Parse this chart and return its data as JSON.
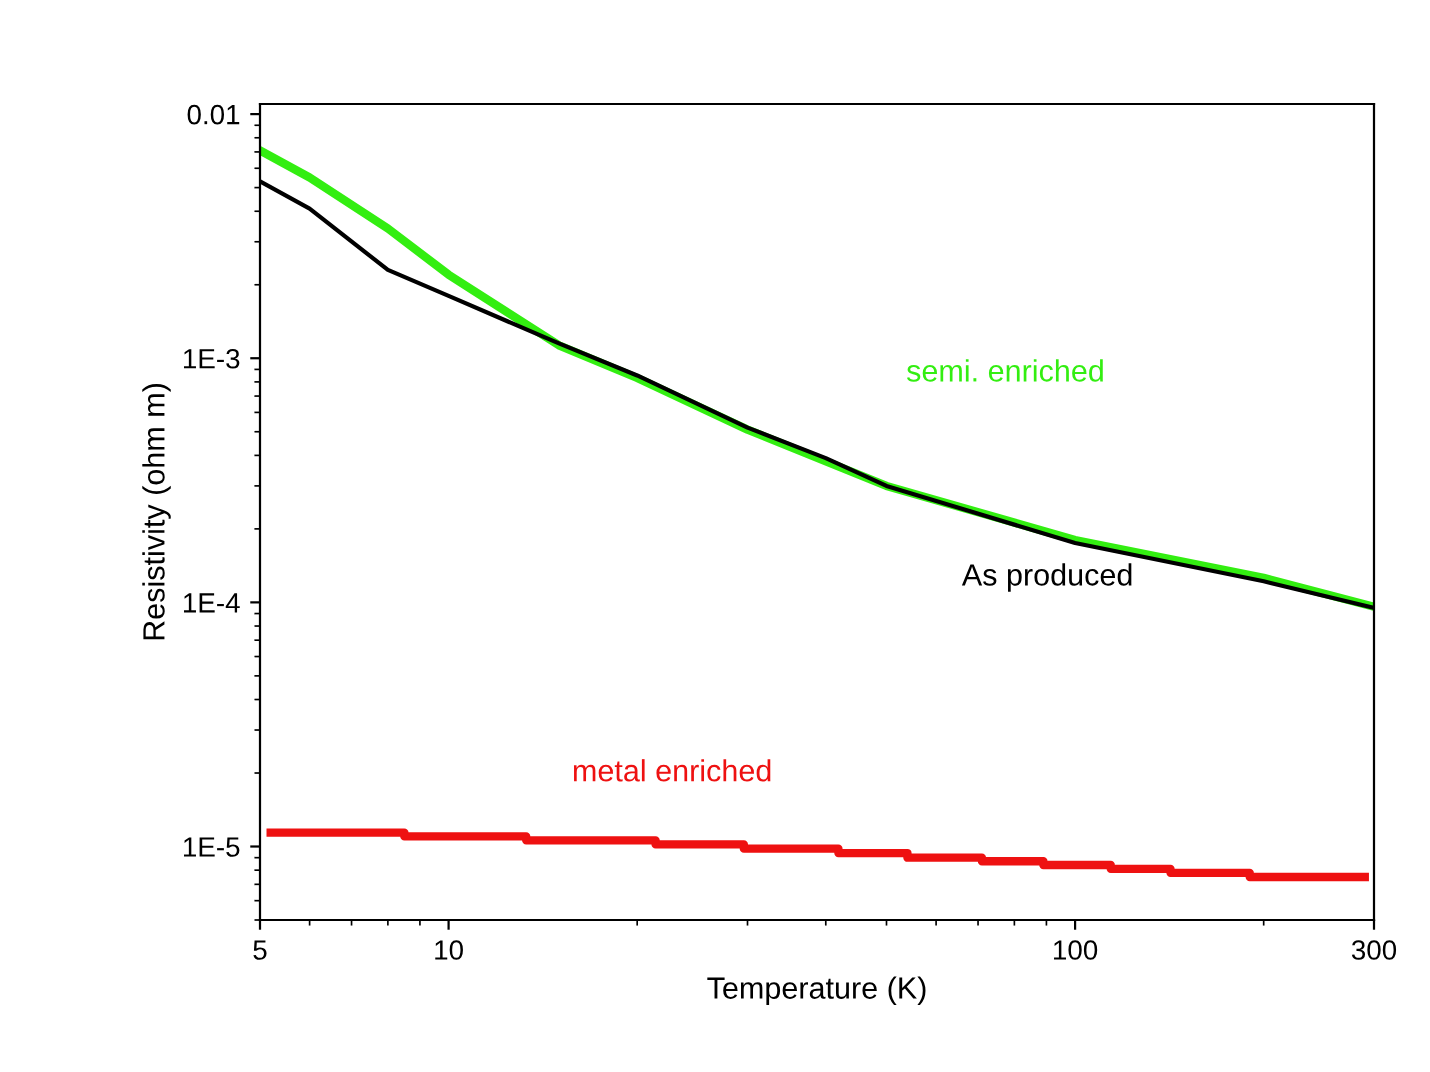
{
  "chart_data": {
    "type": "line",
    "xlabel": "Temperature (K)",
    "ylabel": "Resistivity (ohm m)",
    "log": "xy",
    "xlim": [
      5,
      300
    ],
    "xticks": [
      5,
      10,
      100,
      300
    ],
    "ylim": [
      5e-06,
      0.011
    ],
    "yticks": [
      {
        "value": 0.01,
        "label": "0.01"
      },
      {
        "value": 0.001,
        "label": "1E-3"
      },
      {
        "value": 0.0001,
        "label": "1E-4"
      },
      {
        "value": 1e-05,
        "label": "1E-5"
      }
    ],
    "grid": false,
    "legend": false,
    "marker": "none",
    "line_style": "solid",
    "series": [
      {
        "name": "semi. enriched",
        "color": "#33ee11",
        "x": [
          5,
          6,
          8,
          10,
          15,
          20,
          30,
          50,
          100,
          200,
          300
        ],
        "values": [
          0.0071,
          0.0055,
          0.0034,
          0.0022,
          0.00113,
          0.00083,
          0.00051,
          0.0003,
          0.00018,
          0.000126,
          9.6e-05
        ]
      },
      {
        "name": "As produced",
        "color": "#000000",
        "x": [
          5,
          6,
          8,
          10,
          15,
          20,
          30,
          40,
          50,
          100,
          200,
          300
        ],
        "values": [
          0.0053,
          0.0041,
          0.0023,
          0.0018,
          0.00115,
          0.00085,
          0.00052,
          0.00039,
          0.0003,
          0.000175,
          0.000122,
          9.5e-05
        ]
      },
      {
        "name": "metal enriched",
        "type": "step",
        "color": "#ee1111",
        "x": [
          5.2,
          8.5,
          13.3,
          21.4,
          29.6,
          41.9,
          54,
          71,
          89,
          114,
          142,
          190,
          290
        ],
        "values": [
          1.14e-05,
          1.1e-05,
          1.06e-05,
          1.02e-05,
          9.8e-06,
          9.4e-06,
          9e-06,
          8.7e-06,
          8.4e-06,
          8.1e-06,
          7.8e-06,
          7.5e-06,
          7.5e-06
        ]
      }
    ]
  }
}
